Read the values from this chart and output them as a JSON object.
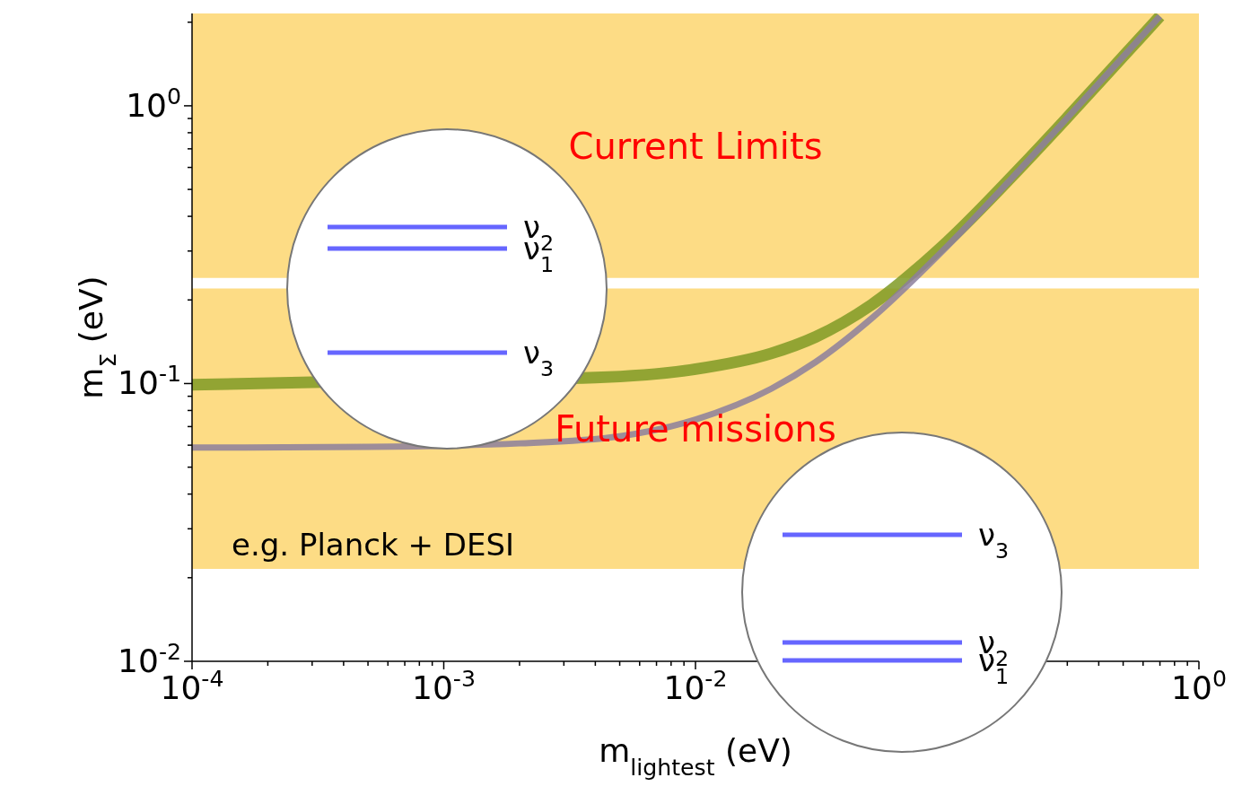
{
  "chart_data": {
    "type": "line",
    "xlabel": "m$_{lightest}$ (eV)",
    "ylabel": "m$_{Σ}$ (eV)",
    "log": "xy",
    "marker": "none",
    "line_style": "solid",
    "xlim": [
      0.0001,
      1
    ],
    "ylim": [
      0.01,
      2.15
    ],
    "xticks": [
      {
        "value": 0.0001,
        "label": "10$^{-4}$"
      },
      {
        "value": 0.0002,
        "label": null
      },
      {
        "value": 0.0003,
        "label": null
      },
      {
        "value": 0.0004,
        "label": null
      },
      {
        "value": 0.0005,
        "label": null
      },
      {
        "value": 0.0006,
        "label": null
      },
      {
        "value": 0.0007,
        "label": null
      },
      {
        "value": 0.0008,
        "label": null
      },
      {
        "value": 0.0009,
        "label": null
      },
      {
        "value": 0.001,
        "label": "10$^{-3}$"
      },
      {
        "value": 0.002,
        "label": null
      },
      {
        "value": 0.003,
        "label": null
      },
      {
        "value": 0.004,
        "label": null
      },
      {
        "value": 0.005,
        "label": null
      },
      {
        "value": 0.006,
        "label": null
      },
      {
        "value": 0.007,
        "label": null
      },
      {
        "value": 0.008,
        "label": null
      },
      {
        "value": 0.009,
        "label": null
      },
      {
        "value": 0.01,
        "label": "10$^{-2}$"
      },
      {
        "value": 0.02,
        "label": null
      },
      {
        "value": 0.03,
        "label": null
      },
      {
        "value": 0.04,
        "label": null
      },
      {
        "value": 0.05,
        "label": null
      },
      {
        "value": 0.06,
        "label": null
      },
      {
        "value": 0.07,
        "label": null
      },
      {
        "value": 0.08,
        "label": null
      },
      {
        "value": 0.09,
        "label": null
      },
      {
        "value": 0.1,
        "label": null
      },
      {
        "value": 0.2,
        "label": null
      },
      {
        "value": 0.3,
        "label": null
      },
      {
        "value": 0.4,
        "label": null
      },
      {
        "value": 0.5,
        "label": null
      },
      {
        "value": 0.6,
        "label": null
      },
      {
        "value": 0.7,
        "label": null
      },
      {
        "value": 0.8,
        "label": null
      },
      {
        "value": 0.9,
        "label": null
      },
      {
        "value": 1,
        "label": "10$^{0}$"
      }
    ],
    "yticks": [
      {
        "value": 0.01,
        "label": "10$^{-2}$"
      },
      {
        "value": 0.02,
        "label": null
      },
      {
        "value": 0.03,
        "label": null
      },
      {
        "value": 0.04,
        "label": null
      },
      {
        "value": 0.05,
        "label": null
      },
      {
        "value": 0.06,
        "label": null
      },
      {
        "value": 0.07,
        "label": null
      },
      {
        "value": 0.08,
        "label": null
      },
      {
        "value": 0.09,
        "label": null
      },
      {
        "value": 0.1,
        "label": "10$^{-1}$"
      },
      {
        "value": 0.2,
        "label": null
      },
      {
        "value": 0.3,
        "label": null
      },
      {
        "value": 0.4,
        "label": null
      },
      {
        "value": 0.5,
        "label": null
      },
      {
        "value": 0.6,
        "label": null
      },
      {
        "value": 0.7,
        "label": null
      },
      {
        "value": 0.8,
        "label": null
      },
      {
        "value": 0.9,
        "label": null
      },
      {
        "value": 1,
        "label": "10$^{0}$"
      },
      {
        "value": 2,
        "label": null
      }
    ],
    "bands": [
      {
        "axis": "y",
        "from": 0.24,
        "to": 2.15,
        "label": "Current Limits",
        "color": "#fddc85"
      },
      {
        "axis": "y",
        "from": 0.0215,
        "to": 0.22,
        "label": "Future missions",
        "color": "#fddc85"
      }
    ],
    "series": [
      {
        "color": "#7f9a24",
        "x": [
          0.0001,
          0.0003,
          0.004,
          0.01,
          0.02,
          0.03,
          0.05,
          0.1,
          0.2,
          0.3,
          0.5,
          0.7
        ],
        "values": [
          0.099,
          0.1011,
          0.1051,
          0.1127,
          0.1284,
          0.1472,
          0.192,
          0.324,
          0.613,
          0.908,
          1.505,
          2.1
        ]
      },
      {
        "color": "#8c7f9c",
        "x": [
          0.0001,
          0.0005,
          0.002,
          0.005,
          0.01,
          0.02,
          0.03,
          0.05,
          0.1,
          0.2,
          0.3,
          0.5,
          0.7
        ],
        "values": [
          0.0588,
          0.0592,
          0.0609,
          0.0646,
          0.0742,
          0.0958,
          0.1195,
          0.1714,
          0.312,
          0.606,
          0.904,
          1.5025,
          2.1
        ]
      }
    ],
    "annotations": [
      "e.g. Planck + DESI",
      "ν$_{2}$",
      "ν$_{1}$",
      "ν$_{3}$",
      "ν$_{3}$",
      "ν$_{2}$",
      "ν$_{1}$"
    ]
  }
}
